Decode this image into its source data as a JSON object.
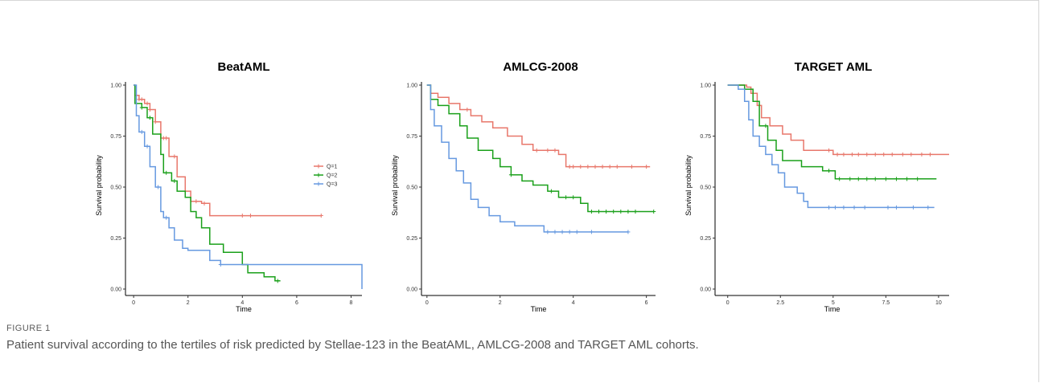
{
  "figure": {
    "label": "FIGURE 1",
    "caption": "Patient survival according to the tertiles of risk predicted by Stellae-123 in the BeatAML, AMLCG-2008 and TARGET AML cohorts."
  },
  "colors": {
    "Q=1": "#e8776b",
    "Q=2": "#1aa01a",
    "Q=3": "#6699e0"
  },
  "chart_data": [
    {
      "type": "line",
      "title": "BeatAML",
      "xlabel": "Time",
      "ylabel": "Survival probability",
      "xlim": [
        -0.3,
        8.4
      ],
      "ylim": [
        0,
        1
      ],
      "xticks": [
        0,
        2,
        4,
        6,
        8
      ],
      "yticks": [
        0.0,
        0.25,
        0.5,
        0.75,
        1.0
      ],
      "ytick_labels": [
        "0.00",
        "0.25",
        "0.50",
        "0.75",
        "1.00"
      ],
      "legend": {
        "position": "right",
        "entries": [
          "Q=1",
          "Q=2",
          "Q=3"
        ]
      },
      "series": [
        {
          "name": "Q=1",
          "points": [
            [
              0,
              1.0
            ],
            [
              0.05,
              0.95
            ],
            [
              0.2,
              0.93
            ],
            [
              0.4,
              0.91
            ],
            [
              0.6,
              0.88
            ],
            [
              0.8,
              0.82
            ],
            [
              1.0,
              0.74
            ],
            [
              1.3,
              0.65
            ],
            [
              1.6,
              0.55
            ],
            [
              1.9,
              0.48
            ],
            [
              2.1,
              0.43
            ],
            [
              2.5,
              0.42
            ],
            [
              2.8,
              0.36
            ],
            [
              6.9,
              0.36
            ]
          ],
          "censor_x": [
            0.1,
            0.2,
            0.3,
            0.5,
            0.6,
            0.8,
            1.1,
            1.2,
            1.5,
            2.3,
            2.6,
            4.0,
            4.3,
            6.9
          ]
        },
        {
          "name": "Q=2",
          "points": [
            [
              0,
              1.0
            ],
            [
              0.05,
              0.91
            ],
            [
              0.3,
              0.89
            ],
            [
              0.5,
              0.84
            ],
            [
              0.7,
              0.76
            ],
            [
              1.0,
              0.66
            ],
            [
              1.1,
              0.57
            ],
            [
              1.4,
              0.53
            ],
            [
              1.6,
              0.48
            ],
            [
              1.9,
              0.45
            ],
            [
              2.1,
              0.38
            ],
            [
              2.3,
              0.35
            ],
            [
              2.5,
              0.3
            ],
            [
              2.8,
              0.22
            ],
            [
              3.3,
              0.18
            ],
            [
              4.0,
              0.12
            ],
            [
              4.2,
              0.08
            ],
            [
              4.8,
              0.06
            ],
            [
              5.2,
              0.04
            ],
            [
              5.4,
              0.04
            ]
          ],
          "censor_x": [
            0.3,
            0.6,
            1.2,
            1.5,
            5.3
          ]
        },
        {
          "name": "Q=3",
          "points": [
            [
              0,
              1.0
            ],
            [
              0.1,
              0.85
            ],
            [
              0.2,
              0.77
            ],
            [
              0.4,
              0.7
            ],
            [
              0.6,
              0.6
            ],
            [
              0.8,
              0.5
            ],
            [
              1.0,
              0.38
            ],
            [
              1.1,
              0.35
            ],
            [
              1.3,
              0.3
            ],
            [
              1.5,
              0.24
            ],
            [
              1.8,
              0.2
            ],
            [
              2.0,
              0.19
            ],
            [
              2.8,
              0.14
            ],
            [
              3.2,
              0.12
            ],
            [
              8.4,
              0.12
            ],
            [
              8.4,
              0.0
            ]
          ],
          "censor_x": [
            0.3,
            0.5,
            0.9,
            1.2,
            3.2
          ]
        }
      ]
    },
    {
      "type": "line",
      "title": "AMLCG-2008",
      "xlabel": "Time",
      "ylabel": "Survival probability",
      "xlim": [
        -0.15,
        6.25
      ],
      "ylim": [
        0,
        1
      ],
      "xticks": [
        0,
        2,
        4,
        6
      ],
      "yticks": [
        0.0,
        0.25,
        0.5,
        0.75,
        1.0
      ],
      "ytick_labels": [
        "0.00",
        "0.25",
        "0.50",
        "0.75",
        "1.00"
      ],
      "series": [
        {
          "name": "Q=1",
          "points": [
            [
              0,
              1.0
            ],
            [
              0.1,
              0.96
            ],
            [
              0.3,
              0.94
            ],
            [
              0.6,
              0.91
            ],
            [
              0.9,
              0.88
            ],
            [
              1.2,
              0.85
            ],
            [
              1.5,
              0.82
            ],
            [
              1.8,
              0.79
            ],
            [
              2.2,
              0.75
            ],
            [
              2.6,
              0.71
            ],
            [
              2.9,
              0.68
            ],
            [
              3.6,
              0.66
            ],
            [
              3.8,
              0.6
            ],
            [
              6.1,
              0.6
            ]
          ],
          "censor_x": [
            1.1,
            3.0,
            3.3,
            3.5,
            3.9,
            4.0,
            4.2,
            4.4,
            4.6,
            4.8,
            5.0,
            5.2,
            5.6,
            6.0
          ]
        },
        {
          "name": "Q=2",
          "points": [
            [
              0,
              1.0
            ],
            [
              0.1,
              0.93
            ],
            [
              0.3,
              0.9
            ],
            [
              0.6,
              0.86
            ],
            [
              0.9,
              0.8
            ],
            [
              1.1,
              0.74
            ],
            [
              1.4,
              0.68
            ],
            [
              1.8,
              0.64
            ],
            [
              2.0,
              0.6
            ],
            [
              2.3,
              0.56
            ],
            [
              2.6,
              0.53
            ],
            [
              2.9,
              0.51
            ],
            [
              3.3,
              0.48
            ],
            [
              3.6,
              0.45
            ],
            [
              4.2,
              0.42
            ],
            [
              4.4,
              0.38
            ],
            [
              6.2,
              0.38
            ]
          ],
          "censor_x": [
            2.3,
            3.4,
            3.8,
            4.0,
            4.5,
            4.7,
            4.9,
            5.1,
            5.3,
            5.5,
            5.7,
            6.2
          ]
        },
        {
          "name": "Q=3",
          "points": [
            [
              0,
              1.0
            ],
            [
              0.1,
              0.88
            ],
            [
              0.2,
              0.8
            ],
            [
              0.4,
              0.72
            ],
            [
              0.6,
              0.64
            ],
            [
              0.8,
              0.58
            ],
            [
              1.0,
              0.52
            ],
            [
              1.2,
              0.44
            ],
            [
              1.4,
              0.4
            ],
            [
              1.7,
              0.36
            ],
            [
              2.0,
              0.33
            ],
            [
              2.4,
              0.31
            ],
            [
              3.1,
              0.31
            ],
            [
              3.2,
              0.28
            ],
            [
              5.5,
              0.28
            ]
          ],
          "censor_x": [
            3.3,
            3.5,
            3.7,
            3.9,
            4.1,
            4.5,
            5.5
          ]
        }
      ]
    },
    {
      "type": "line",
      "title": "TARGET AML",
      "xlabel": "Time",
      "ylabel": "Survival probability",
      "xlim": [
        -0.6,
        10.5
      ],
      "ylim": [
        0,
        1
      ],
      "xticks": [
        0,
        2.5,
        5,
        7.5,
        10
      ],
      "xtick_labels": [
        "0",
        "2.5",
        "5",
        "7.5",
        "10"
      ],
      "yticks": [
        0.0,
        0.25,
        0.5,
        0.75,
        1.0
      ],
      "ytick_labels": [
        "0.00",
        "0.25",
        "0.50",
        "0.75",
        "1.00"
      ],
      "series": [
        {
          "name": "Q=1",
          "points": [
            [
              0,
              1.0
            ],
            [
              0.9,
              0.99
            ],
            [
              1.1,
              0.96
            ],
            [
              1.4,
              0.9
            ],
            [
              1.6,
              0.84
            ],
            [
              2.0,
              0.8
            ],
            [
              2.6,
              0.76
            ],
            [
              3.0,
              0.73
            ],
            [
              3.6,
              0.68
            ],
            [
              4.9,
              0.68
            ],
            [
              5.0,
              0.66
            ],
            [
              10.5,
              0.66
            ]
          ],
          "censor_x": [
            1.5,
            4.8,
            5.2,
            5.5,
            5.9,
            6.2,
            6.6,
            7.0,
            7.4,
            7.8,
            8.3,
            8.7,
            9.2,
            9.6
          ]
        },
        {
          "name": "Q=2",
          "points": [
            [
              0,
              1.0
            ],
            [
              0.8,
              0.98
            ],
            [
              1.2,
              0.92
            ],
            [
              1.5,
              0.8
            ],
            [
              1.9,
              0.73
            ],
            [
              2.3,
              0.68
            ],
            [
              2.6,
              0.63
            ],
            [
              3.5,
              0.6
            ],
            [
              4.5,
              0.58
            ],
            [
              5.1,
              0.54
            ],
            [
              9.9,
              0.54
            ]
          ],
          "censor_x": [
            1.8,
            4.8,
            5.3,
            5.8,
            6.2,
            6.6,
            7.0,
            7.5,
            8.0,
            8.5,
            9.0
          ]
        },
        {
          "name": "Q=3",
          "points": [
            [
              0,
              1.0
            ],
            [
              0.5,
              0.98
            ],
            [
              0.8,
              0.92
            ],
            [
              1.0,
              0.83
            ],
            [
              1.2,
              0.75
            ],
            [
              1.5,
              0.7
            ],
            [
              1.8,
              0.66
            ],
            [
              2.1,
              0.61
            ],
            [
              2.4,
              0.57
            ],
            [
              2.7,
              0.5
            ],
            [
              3.3,
              0.47
            ],
            [
              3.6,
              0.43
            ],
            [
              3.8,
              0.4
            ],
            [
              9.8,
              0.4
            ]
          ],
          "censor_x": [
            4.8,
            5.1,
            5.5,
            6.0,
            6.5,
            7.6,
            8.0,
            8.8,
            9.5
          ]
        }
      ]
    }
  ]
}
